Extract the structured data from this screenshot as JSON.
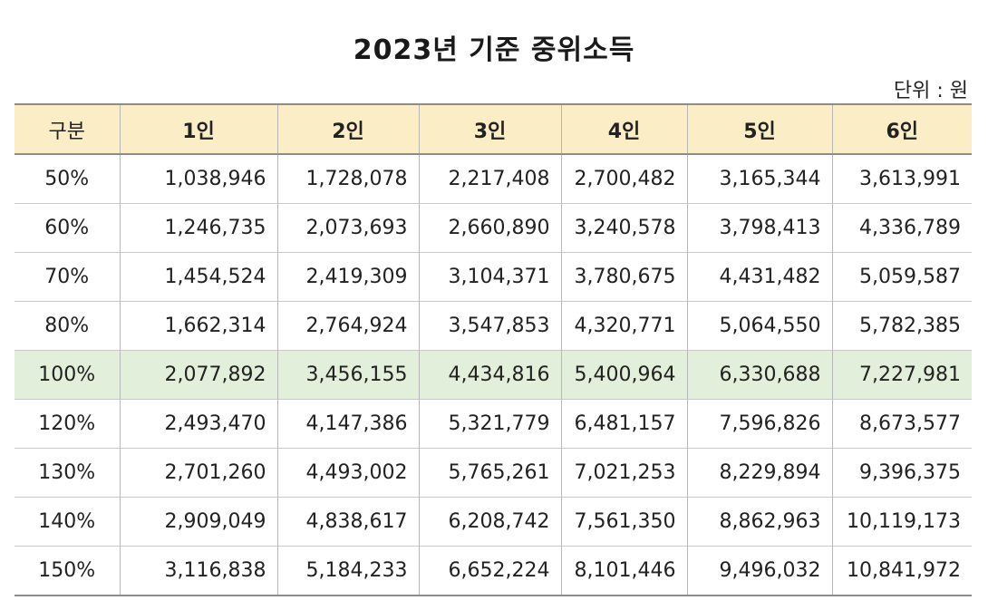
{
  "title": "2023년 기준 중위소득",
  "unit": "단위 : 원",
  "table": {
    "headers": [
      "구분",
      "1인",
      "2인",
      "3인",
      "4인",
      "5인",
      "6인"
    ],
    "rows": [
      [
        "50%",
        "1,038,946",
        "1,728,078",
        "2,217,408",
        "2,700,482",
        "3,165,344",
        "3,613,991"
      ],
      [
        "60%",
        "1,246,735",
        "2,073,693",
        "2,660,890",
        "3,240,578",
        "3,798,413",
        "4,336,789"
      ],
      [
        "70%",
        "1,454,524",
        "2,419,309",
        "3,104,371",
        "3,780,675",
        "4,431,482",
        "5,059,587"
      ],
      [
        "80%",
        "1,662,314",
        "2,764,924",
        "3,547,853",
        "4,320,771",
        "5,064,550",
        "5,782,385"
      ],
      [
        "100%",
        "2,077,892",
        "3,456,155",
        "4,434,816",
        "5,400,964",
        "6,330,688",
        "7,227,981"
      ],
      [
        "120%",
        "2,493,470",
        "4,147,386",
        "5,321,779",
        "6,481,157",
        "7,596,826",
        "8,673,577"
      ],
      [
        "130%",
        "2,701,260",
        "4,493,002",
        "5,765,261",
        "7,021,253",
        "8,229,894",
        "9,396,375"
      ],
      [
        "140%",
        "2,909,049",
        "4,838,617",
        "6,208,742",
        "7,561,350",
        "8,862,963",
        "10,119,173"
      ],
      [
        "150%",
        "3,116,838",
        "5,184,233",
        "6,652,224",
        "8,101,446",
        "9,496,032",
        "10,841,972"
      ]
    ],
    "highlight_row": "100%"
  },
  "colors": {
    "header_background": "#fbeec6",
    "highlight_background": "#e2efda"
  }
}
